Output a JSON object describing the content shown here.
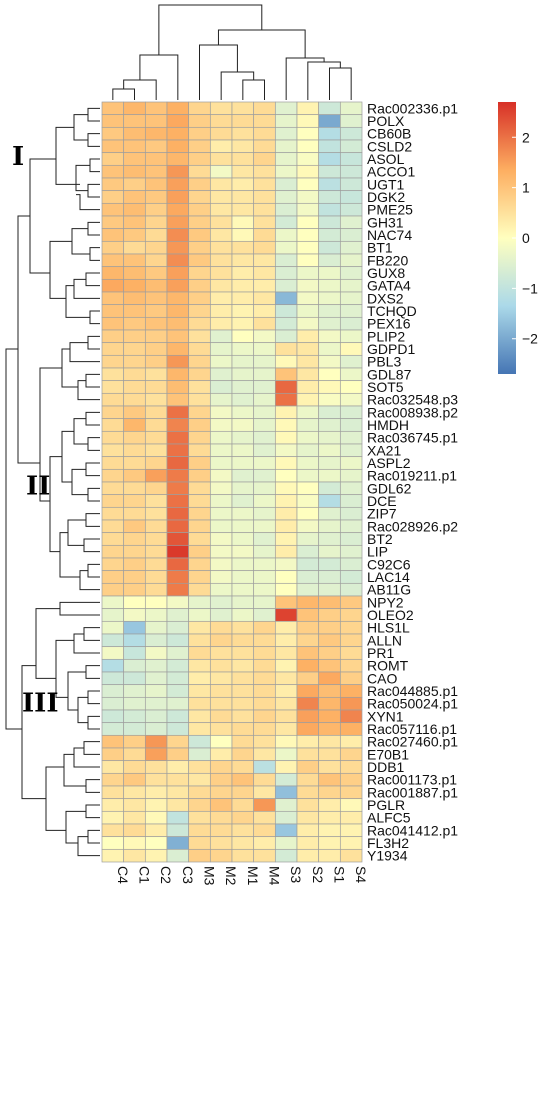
{
  "chart_data": {
    "type": "heatmap",
    "title": "",
    "columns": [
      "C4",
      "C1",
      "C2",
      "C3",
      "M3",
      "M2",
      "M1",
      "M4",
      "S3",
      "S2",
      "S1",
      "S4"
    ],
    "rows": [
      "Rac002336.p1",
      "POLX",
      "CB60B",
      "CSLD2",
      "ASOL",
      "ACCO1",
      "UGT1",
      "DGK2",
      "PME25",
      "GH31",
      "NAC74",
      "BT1",
      "FB220",
      "GUX8",
      "GATA4",
      "DXS2",
      "TCHQD",
      "PEX16",
      "PLIP2",
      "GDPD1",
      "PBL3",
      "GDL87",
      "SOT5",
      "Rac032548.p3",
      "Rac008938.p2",
      "HMDH",
      "Rac036745.p1",
      "XA21",
      "ASPL2",
      "Rac019211.p1",
      "GDL62",
      "DCE",
      "ZIP7",
      "Rac028926.p2",
      "BT2",
      "LIP",
      "C92C6",
      "LAC14",
      "AB11G",
      "NPY2",
      "OLEO2",
      "HLS1L",
      "ALLN",
      "PR1",
      "ROMT",
      "CAO",
      "Rac044885.p1",
      "Rac050024.p1",
      "XYN1",
      "Rac057116.p1",
      "Rac027460.p1",
      "E70B1",
      "DDB1",
      "Rac001173.p1",
      "Rac001887.p1",
      "PGLR",
      "ALFC5",
      "Rac041412.p1",
      "FL3H2",
      "Y1934"
    ],
    "values": [
      [
        1.0,
        1.2,
        1.0,
        1.3,
        0.7,
        0.5,
        0.5,
        0.6,
        -0.5,
        0.2,
        -0.8,
        -0.4
      ],
      [
        1.0,
        1.0,
        1.0,
        1.4,
        0.8,
        0.6,
        0.6,
        0.6,
        -0.4,
        0.1,
        -2.0,
        -0.5
      ],
      [
        0.9,
        1.1,
        1.2,
        1.3,
        0.8,
        0.6,
        0.5,
        0.6,
        -0.5,
        0.0,
        -1.2,
        -0.8
      ],
      [
        1.0,
        1.0,
        0.9,
        1.3,
        0.8,
        0.3,
        0.4,
        0.6,
        -0.4,
        0.0,
        -1.0,
        -0.7
      ],
      [
        0.8,
        1.0,
        1.0,
        1.2,
        0.8,
        0.5,
        0.5,
        0.7,
        -0.4,
        -0.1,
        -1.2,
        -0.9
      ],
      [
        1.0,
        1.1,
        1.0,
        1.6,
        0.6,
        -0.2,
        0.4,
        0.5,
        -0.3,
        0.1,
        -0.8,
        -0.8
      ],
      [
        0.9,
        0.8,
        1.0,
        1.5,
        0.8,
        0.4,
        0.3,
        0.5,
        -0.6,
        0.0,
        -1.1,
        -0.8
      ],
      [
        0.8,
        1.0,
        0.9,
        1.5,
        0.7,
        0.4,
        0.4,
        0.5,
        -0.5,
        -0.2,
        -0.8,
        -0.9
      ],
      [
        1.0,
        1.1,
        0.8,
        1.4,
        0.8,
        0.4,
        0.4,
        0.5,
        -0.6,
        -0.2,
        -1.0,
        -0.8
      ],
      [
        0.9,
        1.0,
        0.7,
        1.5,
        0.8,
        0.5,
        0.1,
        0.5,
        -0.7,
        0.0,
        -0.8,
        -0.5
      ],
      [
        1.0,
        0.9,
        0.6,
        1.7,
        0.9,
        0.4,
        0.1,
        0.6,
        -0.3,
        0.0,
        -0.7,
        -0.6
      ],
      [
        0.8,
        0.6,
        0.7,
        1.6,
        0.8,
        0.5,
        0.5,
        0.6,
        -0.3,
        0.0,
        -0.8,
        -0.5
      ],
      [
        1.0,
        1.0,
        0.7,
        1.7,
        0.9,
        0.5,
        0.4,
        0.4,
        -0.6,
        0.0,
        -0.6,
        -0.4
      ],
      [
        1.2,
        1.1,
        0.9,
        1.5,
        0.7,
        0.5,
        0.3,
        0.4,
        -0.6,
        -0.3,
        -0.3,
        -0.5
      ],
      [
        1.4,
        1.3,
        1.1,
        1.5,
        0.8,
        0.4,
        0.3,
        0.3,
        -0.6,
        -0.2,
        -0.3,
        -0.4
      ],
      [
        1.0,
        1.1,
        1.0,
        1.2,
        0.8,
        0.3,
        0.3,
        0.4,
        -1.8,
        -0.2,
        -0.3,
        -0.4
      ],
      [
        1.0,
        1.0,
        0.9,
        1.2,
        0.7,
        0.3,
        0.2,
        0.3,
        -0.8,
        -0.3,
        -0.5,
        -0.5
      ],
      [
        1.0,
        0.9,
        1.0,
        1.1,
        0.6,
        0.3,
        0.2,
        0.5,
        -0.7,
        -0.2,
        -0.5,
        -0.6
      ],
      [
        0.8,
        0.8,
        0.8,
        1.0,
        0.5,
        -0.5,
        0.0,
        -0.2,
        -0.6,
        0.3,
        -0.2,
        -0.3
      ],
      [
        0.7,
        0.7,
        0.8,
        1.2,
        0.6,
        -0.4,
        -0.3,
        -0.3,
        0.5,
        0.4,
        -0.3,
        0.1
      ],
      [
        0.7,
        0.7,
        0.8,
        1.6,
        0.7,
        -0.3,
        -0.4,
        -0.4,
        0.1,
        0.4,
        -0.2,
        -0.5
      ],
      [
        0.5,
        0.6,
        0.5,
        1.2,
        0.7,
        -0.5,
        -0.4,
        -0.4,
        1.0,
        0.4,
        0.0,
        -0.3
      ],
      [
        0.5,
        0.6,
        0.6,
        1.1,
        0.5,
        -0.6,
        -0.5,
        -0.5,
        2.1,
        0.3,
        0.1,
        0.0
      ],
      [
        0.6,
        0.6,
        0.5,
        1.0,
        0.5,
        -0.4,
        -0.5,
        -0.4,
        2.0,
        0.2,
        -0.1,
        -0.2
      ],
      [
        0.7,
        0.9,
        0.6,
        2.0,
        0.7,
        -0.2,
        -0.3,
        -0.4,
        0.2,
        -0.3,
        -0.6,
        -0.6
      ],
      [
        0.6,
        1.2,
        0.6,
        1.8,
        0.8,
        -0.2,
        -0.2,
        -0.4,
        0.1,
        -0.4,
        -0.5,
        -0.6
      ],
      [
        0.6,
        0.7,
        0.6,
        2.0,
        0.7,
        -0.3,
        -0.4,
        -0.5,
        0.1,
        -0.3,
        -0.4,
        -0.5
      ],
      [
        0.5,
        0.6,
        0.5,
        2.0,
        0.6,
        -0.3,
        -0.3,
        -0.5,
        -0.2,
        -0.4,
        -0.3,
        -0.5
      ],
      [
        0.6,
        0.6,
        0.7,
        2.1,
        0.8,
        -0.3,
        -0.3,
        -0.3,
        0.1,
        -0.3,
        -0.4,
        -0.3
      ],
      [
        0.7,
        0.9,
        1.5,
        1.9,
        0.8,
        -0.2,
        -0.5,
        -0.5,
        0.0,
        -0.3,
        -0.3,
        -0.4
      ],
      [
        0.6,
        0.6,
        0.7,
        1.9,
        0.6,
        -0.2,
        -0.4,
        -0.4,
        0.1,
        0.0,
        -0.7,
        -0.5
      ],
      [
        0.7,
        0.7,
        0.5,
        2.0,
        0.6,
        -0.3,
        -0.5,
        -0.3,
        0.2,
        -0.1,
        -1.2,
        -0.6
      ],
      [
        0.6,
        0.6,
        0.5,
        2.1,
        0.7,
        -0.3,
        -0.3,
        -0.4,
        0.3,
        0.0,
        -0.5,
        -0.6
      ],
      [
        0.6,
        0.9,
        0.6,
        2.1,
        0.7,
        -0.3,
        -0.3,
        -0.3,
        0.3,
        -0.2,
        -0.4,
        -0.5
      ],
      [
        0.6,
        0.7,
        0.6,
        2.3,
        0.6,
        -0.2,
        -0.3,
        -0.5,
        0.2,
        -0.4,
        -0.5,
        -0.6
      ],
      [
        0.7,
        0.7,
        0.6,
        2.6,
        0.8,
        -0.2,
        -0.2,
        -0.4,
        0.3,
        -0.6,
        -0.4,
        -0.5
      ],
      [
        0.7,
        0.8,
        0.6,
        2.1,
        0.7,
        -0.2,
        -0.3,
        -0.3,
        -0.2,
        -0.7,
        -0.7,
        -0.6
      ],
      [
        0.8,
        0.8,
        0.6,
        1.9,
        0.7,
        -0.2,
        -0.3,
        -0.3,
        0.0,
        -0.6,
        -0.6,
        -0.7
      ],
      [
        0.8,
        0.8,
        0.6,
        1.9,
        0.6,
        -0.3,
        -0.3,
        -0.3,
        0.0,
        -0.5,
        -0.5,
        -0.6
      ],
      [
        -0.3,
        0.0,
        0.0,
        -0.2,
        -0.4,
        -0.5,
        -0.4,
        -0.4,
        1.0,
        1.2,
        1.1,
        0.9
      ],
      [
        -0.4,
        -0.2,
        -0.3,
        -0.5,
        -0.3,
        -0.5,
        -0.3,
        -0.5,
        2.5,
        1.0,
        0.8,
        0.7
      ],
      [
        -0.3,
        -1.6,
        -0.4,
        -0.6,
        0.4,
        0.6,
        0.5,
        0.7,
        0.3,
        0.8,
        0.8,
        0.7
      ],
      [
        -0.8,
        -1.2,
        -0.6,
        -0.8,
        0.5,
        0.7,
        0.6,
        0.6,
        0.3,
        0.7,
        0.9,
        0.7
      ],
      [
        -0.2,
        -0.9,
        -0.2,
        -0.5,
        0.6,
        0.5,
        0.5,
        0.6,
        0.4,
        1.0,
        0.8,
        0.6
      ],
      [
        -1.2,
        -0.6,
        -0.5,
        -0.7,
        0.4,
        0.5,
        0.4,
        0.6,
        0.2,
        1.3,
        1.0,
        0.7
      ],
      [
        -0.8,
        -0.8,
        -0.5,
        -0.7,
        0.3,
        0.4,
        0.5,
        0.6,
        0.4,
        0.8,
        1.4,
        0.8
      ],
      [
        -0.6,
        -0.5,
        -0.4,
        -0.7,
        0.4,
        0.5,
        0.5,
        0.6,
        0.3,
        1.4,
        1.1,
        1.3
      ],
      [
        -0.6,
        -0.5,
        -0.5,
        -0.5,
        0.5,
        0.5,
        0.5,
        0.6,
        0.4,
        1.8,
        1.2,
        1.6
      ],
      [
        -0.8,
        -0.7,
        -0.6,
        -0.8,
        0.4,
        0.6,
        0.5,
        0.7,
        0.5,
        1.5,
        1.3,
        1.8
      ],
      [
        -0.7,
        -0.7,
        -0.6,
        -0.8,
        0.4,
        0.5,
        0.6,
        0.6,
        0.4,
        1.4,
        1.2,
        1.3
      ],
      [
        1.0,
        0.8,
        1.6,
        0.7,
        -0.8,
        0.0,
        0.6,
        0.5,
        0.1,
        0.3,
        0.4,
        0.3
      ],
      [
        0.8,
        0.6,
        1.5,
        0.8,
        -0.6,
        0.3,
        0.7,
        0.4,
        -0.3,
        0.5,
        0.5,
        0.7
      ],
      [
        0.4,
        0.6,
        0.5,
        0.3,
        0.5,
        0.7,
        0.6,
        -1.1,
        0.2,
        0.8,
        0.5,
        0.6
      ],
      [
        0.7,
        0.9,
        0.5,
        0.5,
        0.4,
        0.8,
        1.0,
        0.6,
        -0.7,
        0.6,
        1.0,
        0.8
      ],
      [
        0.5,
        0.4,
        0.3,
        0.4,
        0.6,
        0.7,
        0.7,
        0.4,
        -1.7,
        0.6,
        0.7,
        0.7
      ],
      [
        0.3,
        0.4,
        0.2,
        0.4,
        0.7,
        1.0,
        0.6,
        1.6,
        -0.5,
        0.5,
        0.3,
        0.1
      ],
      [
        0.2,
        0.4,
        0.1,
        -1.0,
        0.5,
        0.6,
        0.7,
        0.5,
        -0.6,
        0.4,
        0.3,
        0.3
      ],
      [
        0.5,
        0.6,
        0.3,
        -0.8,
        0.6,
        0.6,
        0.5,
        0.6,
        -1.6,
        0.3,
        0.2,
        0.2
      ],
      [
        0.0,
        0.1,
        0.0,
        -1.9,
        0.6,
        0.5,
        0.4,
        0.3,
        -0.4,
        0.3,
        0.2,
        0.2
      ],
      [
        0.2,
        0.4,
        0.2,
        -0.6,
        0.8,
        0.7,
        0.5,
        0.5,
        -0.7,
        0.3,
        0.3,
        0.5
      ]
    ],
    "colorbar": {
      "ticks": [
        2,
        1,
        0,
        -1,
        -2
      ],
      "range": [
        -2.7,
        2.7
      ],
      "colors": {
        "low": "#4575b4",
        "mid_low": "#abd9e9",
        "mid": "#ffffbf",
        "mid_high": "#fdae61",
        "high": "#d73027"
      }
    },
    "cluster_labels": [
      "I",
      "II",
      "III"
    ],
    "grid_color": "#9e9e9e"
  }
}
